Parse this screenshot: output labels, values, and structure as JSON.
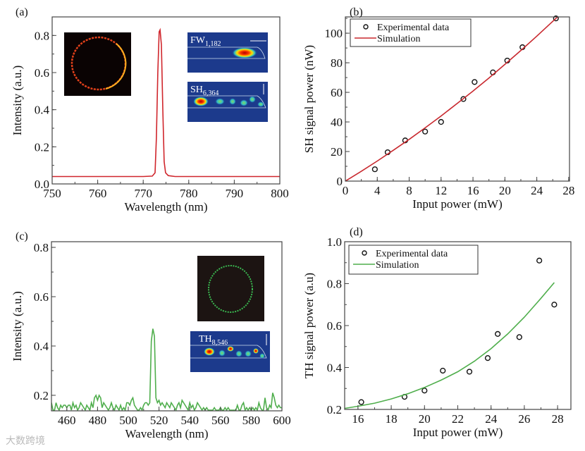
{
  "colors": {
    "red": "#d0262c",
    "green": "#4fae4c",
    "black": "#111111"
  },
  "watermark": "大数跨境",
  "insets": {
    "fw_label": "FW",
    "fw_sub": "1,182",
    "sh_label": "SH",
    "sh_sub": "6,364",
    "th_label": "TH",
    "th_sub": "8,546"
  },
  "chart_data": [
    {
      "panel": "(a)",
      "type": "line",
      "xlabel": "Wavelength (nm)",
      "ylabel": "Intensity (a.u.)",
      "xlim": [
        750,
        800
      ],
      "ylim": [
        0,
        0.9
      ],
      "xticks": [
        750,
        760,
        770,
        780,
        790,
        800
      ],
      "xtick_labels": [
        "750",
        "760",
        "770",
        "780",
        "790",
        "800"
      ],
      "xminor": 5,
      "yticks": [
        0,
        0.2,
        0.4,
        0.6,
        0.8
      ],
      "ytick_labels": [
        "0.0",
        "0.2",
        "0.4",
        "0.6",
        "0.8"
      ],
      "yminor": 0.1,
      "series": [
        {
          "name": "FW spectrum",
          "color": "#d0262c",
          "x": [
            750,
            760,
            770,
            772,
            772.6,
            772.9,
            773.2,
            773.5,
            773.7,
            774.0,
            774.3,
            774.6,
            774.9,
            775.5,
            777,
            790,
            800
          ],
          "y": [
            0.04,
            0.04,
            0.04,
            0.042,
            0.06,
            0.25,
            0.6,
            0.82,
            0.83,
            0.75,
            0.4,
            0.12,
            0.06,
            0.045,
            0.04,
            0.04,
            0.04
          ]
        }
      ]
    },
    {
      "panel": "(b)",
      "type": "scatter+line",
      "xlabel": "Input power (mW)",
      "ylabel": "SH signal power (nW)",
      "xlim": [
        0,
        28.1
      ],
      "ylim": [
        0,
        111
      ],
      "xticks": [
        0,
        4,
        8,
        12,
        16,
        20,
        24,
        28
      ],
      "xtick_labels": [
        "0",
        "4",
        "8",
        "12",
        "16",
        "20",
        "24",
        "28"
      ],
      "xminor": 2,
      "yticks": [
        0,
        20,
        40,
        60,
        80,
        100
      ],
      "ytick_labels": [
        "0",
        "20",
        "40",
        "60",
        "80",
        "100"
      ],
      "yminor": 10,
      "legend": {
        "position": "top-left",
        "entries": [
          "Experimental data",
          "Simulation"
        ]
      },
      "series": [
        {
          "name": "Experimental data",
          "kind": "scatter",
          "x": [
            3.7,
            5.3,
            7.5,
            10.0,
            12.0,
            14.8,
            16.2,
            18.5,
            20.3,
            22.2,
            26.4
          ],
          "y": [
            8,
            19.5,
            27.5,
            33.5,
            40,
            55.5,
            67,
            73.5,
            81.5,
            90.5,
            110
          ]
        },
        {
          "name": "Simulation",
          "kind": "line",
          "color": "#c8282e",
          "x": [
            0,
            2,
            4,
            6,
            8,
            10,
            12,
            14,
            16,
            18,
            20,
            22,
            24,
            26,
            26.6
          ],
          "y": [
            0,
            6.6,
            13.6,
            20.8,
            28.2,
            36,
            44,
            52.4,
            60.9,
            69.7,
            78.9,
            88.3,
            98,
            108,
            111
          ]
        }
      ]
    },
    {
      "panel": "(c)",
      "type": "line",
      "xlabel": "Wavelength (nm)",
      "ylabel": "Intensity (a.u.)",
      "xlim": [
        450,
        600
      ],
      "ylim": [
        0.137,
        0.823
      ],
      "xticks": [
        460,
        480,
        500,
        520,
        540,
        560,
        580,
        600
      ],
      "xtick_labels": [
        "460",
        "480",
        "500",
        "520",
        "540",
        "560",
        "580",
        "600"
      ],
      "xminor": 10,
      "yticks": [
        0.2,
        0.4,
        0.6,
        0.8
      ],
      "ytick_labels": [
        "0.2",
        "0.4",
        "0.6",
        "0.8"
      ],
      "yminor": 0.1,
      "series": [
        {
          "name": "TH spectrum",
          "color": "#4fae4c",
          "x_start": 450,
          "x_step": 1,
          "y": [
            0.17,
            0.14,
            0.14,
            0.17,
            0.15,
            0.14,
            0.16,
            0.15,
            0.16,
            0.16,
            0.15,
            0.16,
            0.16,
            0.14,
            0.17,
            0.15,
            0.16,
            0.14,
            0.15,
            0.17,
            0.16,
            0.15,
            0.14,
            0.16,
            0.15,
            0.14,
            0.17,
            0.15,
            0.19,
            0.2,
            0.18,
            0.2,
            0.19,
            0.15,
            0.17,
            0.16,
            0.15,
            0.14,
            0.15,
            0.17,
            0.15,
            0.14,
            0.16,
            0.15,
            0.14,
            0.16,
            0.14,
            0.15,
            0.14,
            0.17,
            0.17,
            0.16,
            0.18,
            0.19,
            0.16,
            0.15,
            0.14,
            0.14,
            0.15,
            0.14,
            0.16,
            0.17,
            0.17,
            0.16,
            0.17,
            0.42,
            0.47,
            0.44,
            0.19,
            0.17,
            0.18,
            0.16,
            0.17,
            0.16,
            0.15,
            0.17,
            0.16,
            0.15,
            0.17,
            0.16,
            0.15,
            0.14,
            0.16,
            0.17,
            0.15,
            0.18,
            0.17,
            0.16,
            0.15,
            0.14,
            0.17,
            0.15,
            0.16,
            0.14,
            0.15,
            0.17,
            0.16,
            0.15,
            0.14,
            0.15,
            0.14,
            0.15,
            0.14,
            0.14,
            0.14,
            0.14,
            0.15,
            0.14,
            0.14,
            0.14,
            0.15,
            0.14,
            0.14,
            0.15,
            0.14,
            0.15,
            0.14,
            0.14,
            0.14,
            0.14,
            0.14,
            0.16,
            0.14,
            0.14,
            0.16,
            0.17,
            0.14,
            0.15,
            0.14,
            0.15,
            0.14,
            0.15,
            0.14,
            0.15,
            0.14,
            0.17,
            0.15,
            0.14,
            0.14,
            0.19,
            0.15,
            0.14,
            0.16,
            0.15,
            0.21,
            0.19,
            0.16,
            0.15,
            0.16,
            0.15,
            0.15
          ]
        }
      ]
    },
    {
      "panel": "(d)",
      "type": "scatter+line",
      "xlabel": "Input power (mW)",
      "ylabel": "TH signal power (a.u)",
      "xlim": [
        15.2,
        28.8
      ],
      "ylim": [
        0.2,
        1.0
      ],
      "xticks": [
        16,
        18,
        20,
        22,
        24,
        26,
        28
      ],
      "xtick_labels": [
        "16",
        "18",
        "20",
        "22",
        "24",
        "26",
        "28"
      ],
      "xminor": 1,
      "yticks": [
        0.2,
        0.4,
        0.6,
        0.8,
        1.0
      ],
      "ytick_labels": [
        "0.2",
        "0.4",
        "0.6",
        "0.8",
        "1.0"
      ],
      "yminor": 0.1,
      "legend": {
        "position": "top-left",
        "entries": [
          "Experimental data",
          "Simulation"
        ]
      },
      "series": [
        {
          "name": "Experimental data",
          "kind": "scatter",
          "x": [
            16.2,
            18.8,
            20.0,
            21.1,
            22.7,
            23.8,
            24.4,
            25.7,
            26.9,
            27.8
          ],
          "y": [
            0.235,
            0.26,
            0.29,
            0.385,
            0.38,
            0.445,
            0.56,
            0.545,
            0.91,
            0.7
          ]
        },
        {
          "name": "Simulation",
          "kind": "line",
          "color": "#4fae4c",
          "x": [
            15.2,
            16,
            17,
            18,
            19,
            20,
            21,
            22,
            23,
            24,
            25,
            26,
            27,
            27.8
          ],
          "y": [
            0.205,
            0.215,
            0.23,
            0.25,
            0.275,
            0.305,
            0.34,
            0.38,
            0.43,
            0.49,
            0.56,
            0.64,
            0.73,
            0.805
          ]
        }
      ]
    }
  ]
}
